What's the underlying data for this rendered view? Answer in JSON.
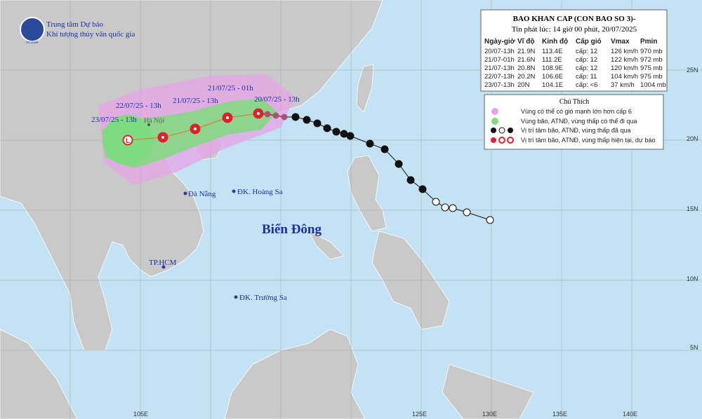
{
  "header": {
    "org_line1": "Trung tâm Dự báo",
    "org_line2": "Khí tượng thủy văn quốc gia",
    "logo_text": "NCHMF"
  },
  "info_box": {
    "title": "BAO KHAN CAP (CON BAO SO 3)-",
    "issued": "Tin phát lúc: 14 giờ 00 phút, 20/07/2025",
    "columns": [
      "Ngày-giờ",
      "Vĩ độ",
      "Kinh độ",
      "Cấp gió",
      "Vmax",
      "Pmin"
    ],
    "rows": [
      [
        "20/07-13h",
        "21.9N",
        "113.4E",
        "cấp: 12",
        "126 km/h",
        "970 mb"
      ],
      [
        "21/07-01h",
        "21.6N",
        "111.2E",
        "cấp: 12",
        "122 km/h",
        "972 mb"
      ],
      [
        "21/07-13h",
        "20.8N",
        "108.9E",
        "cấp: 12",
        "120 km/h",
        "975 mb"
      ],
      [
        "22/07-13h",
        "20.2N",
        "106.6E",
        "cấp: 11",
        "104 km/h",
        "975 mb"
      ],
      [
        "23/07-13h",
        "20N",
        "104.1E",
        "cấp: <6",
        "37 km/h",
        "1004 mb"
      ]
    ]
  },
  "legend": {
    "title": "Chú Thích",
    "items": [
      "Vùng có thể có gió mạnh lớn hơn cấp 6",
      "Vùng bão, ATNĐ, vùng thấp có thể đi qua",
      "Vị trí tâm bão, ATNĐ, vùng thấp đã qua",
      "Vị trí tâm bão, ATNĐ, vùng thấp hiện tại, dự báo"
    ]
  },
  "track_labels": [
    "23/07/25 - 13h",
    "22/07/25 - 13h",
    "21/07/25 - 13h",
    "21/07/25 - 01h",
    "20/07/25 - 13h"
  ],
  "places": {
    "hanoi": "Hà Nội",
    "danang": "Đà Nẵng",
    "hoangsa": "ĐK. Hoàng Sa",
    "sea": "Biển Đông",
    "hcm": "TP.HCM",
    "truongsa": "ĐK. Trường Sa"
  },
  "lon_labels": [
    "105E",
    "125E",
    "130E",
    "135E",
    "140E"
  ],
  "lat_labels": [
    "25N",
    "20N",
    "15N",
    "10N",
    "5N"
  ]
}
